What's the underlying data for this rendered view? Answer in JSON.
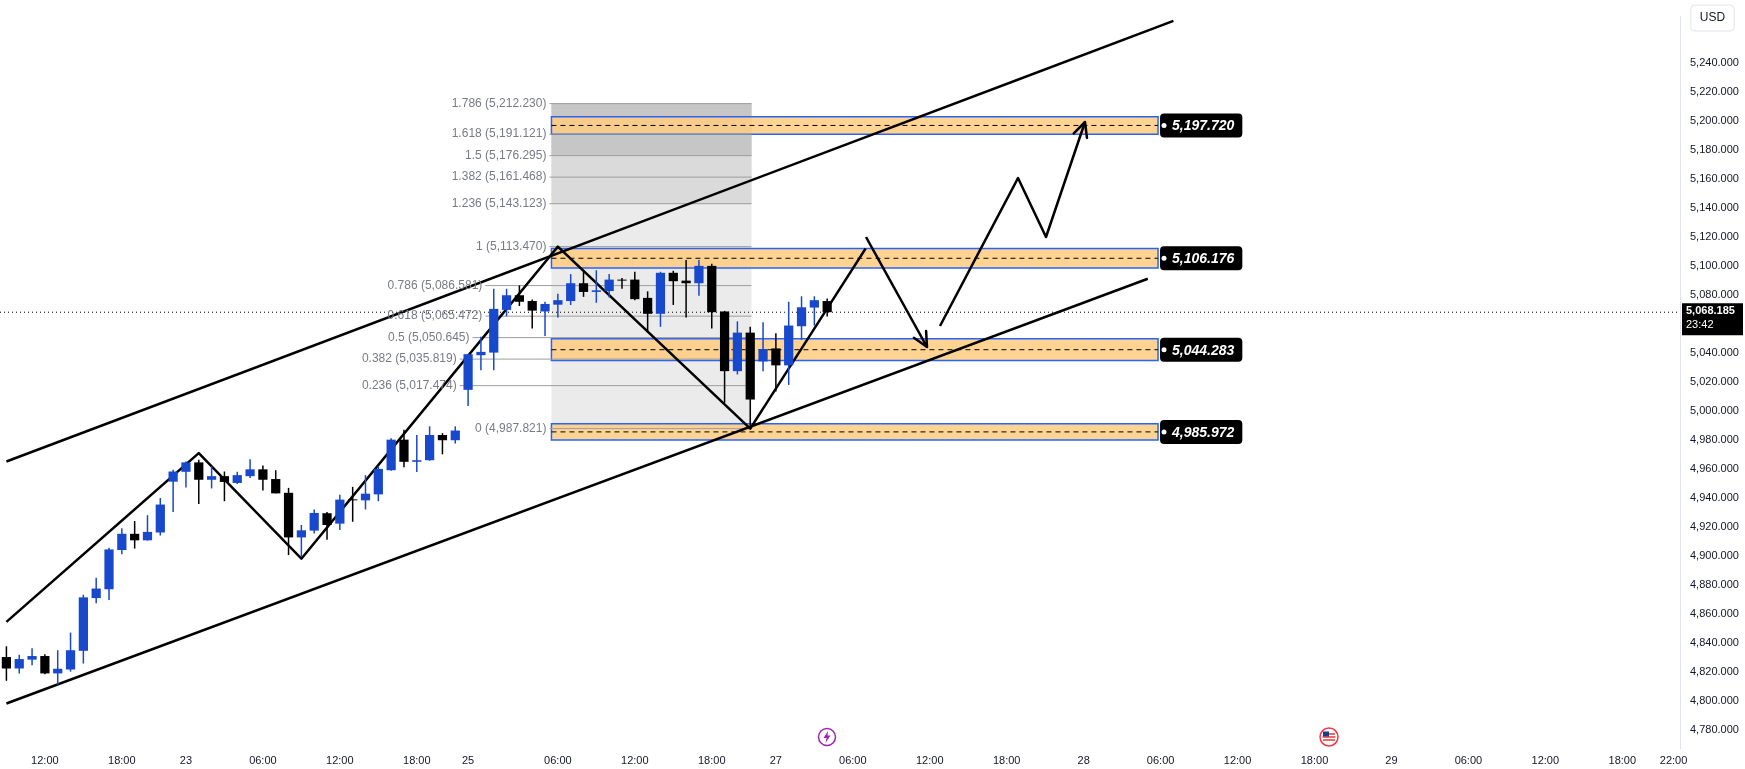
{
  "chart_data": {
    "type": "candlestick",
    "ylabel": "USD",
    "categories": [
      null,
      null,
      null,
      "12:00",
      null,
      null,
      null,
      null,
      null,
      "18:00",
      null,
      null,
      null,
      null,
      "23",
      null,
      null,
      null,
      null,
      null,
      "06:00",
      null,
      null,
      null,
      null,
      null,
      "12:00",
      null,
      null,
      null,
      null,
      null,
      "18:00",
      null,
      null,
      null,
      "25",
      null,
      null,
      null,
      null,
      null,
      null,
      "06:00",
      null,
      null,
      null,
      null,
      null,
      "12:00",
      null,
      null,
      null,
      null,
      null,
      "18:00",
      null,
      null,
      null,
      null,
      "27",
      null,
      null,
      null,
      null,
      null,
      "06:00",
      null,
      null,
      null,
      null,
      null,
      "12:00",
      null,
      null,
      null,
      null,
      null,
      "18:00",
      null,
      null,
      null,
      null,
      null,
      "28",
      null,
      null,
      null,
      null,
      null,
      "06:00",
      null,
      null,
      null,
      null,
      null,
      "12:00",
      null,
      null,
      null,
      null,
      null,
      "18:00",
      null,
      null,
      null,
      null,
      null,
      "29",
      null,
      null,
      null,
      null,
      null,
      "06:00",
      null,
      null,
      null,
      null,
      null,
      "12:00",
      null,
      null,
      null,
      null,
      null,
      "18:00",
      null,
      null,
      null,
      "22:00"
    ],
    "ohlc": [
      [
        4830.1,
        4837.5,
        4813.7,
        4822.2
      ],
      [
        4822.2,
        4831.7,
        4818.8,
        4828.7
      ],
      [
        4828.3,
        4836.2,
        4824.5,
        4830.8
      ],
      [
        4830.8,
        4832.1,
        4818.2,
        4818.8
      ],
      [
        4818.8,
        4834.8,
        4811.0,
        4822.0
      ],
      [
        4821.5,
        4847.0,
        4820.0,
        4834.8
      ],
      [
        4834.4,
        4873.1,
        4825.6,
        4871.3
      ],
      [
        4870.8,
        4884.8,
        4867.2,
        4877.4
      ],
      [
        4876.9,
        4905.5,
        4869.5,
        4904.4
      ],
      [
        4904.0,
        4919.0,
        4901.0,
        4915.2
      ],
      [
        4915.2,
        4924.0,
        4905.0,
        4910.7
      ],
      [
        4910.7,
        4928.0,
        4910.5,
        4916.5
      ],
      [
        4916.1,
        4939.9,
        4914.0,
        4935.4
      ],
      [
        4951.2,
        4959.5,
        4930.3,
        4958.2
      ],
      [
        4958.0,
        4965.1,
        4947.1,
        4964.5
      ],
      [
        4964.5,
        4966.3,
        4935.7,
        4952.5
      ],
      [
        4952.5,
        4961.8,
        4946.5,
        4955.0
      ],
      [
        4955.0,
        4958.2,
        4937.7,
        4951.0
      ],
      [
        4950.3,
        4958.0,
        4949.6,
        4955.7
      ],
      [
        4955.0,
        4966.7,
        4953.7,
        4959.7
      ],
      [
        4959.7,
        4962.4,
        4945.1,
        4952.5
      ],
      [
        4953.0,
        4959.1,
        4943.1,
        4943.1
      ],
      [
        4943.5,
        4946.9,
        4900.5,
        4912.7
      ],
      [
        4912.7,
        4921.3,
        4899.2,
        4917.6
      ],
      [
        4917.4,
        4932.0,
        4915.4,
        4929.6
      ],
      [
        4929.4,
        4930.3,
        4911.1,
        4921.3
      ],
      [
        4922.2,
        4942.2,
        4917.9,
        4938.8
      ],
      [
        4938.6,
        4947.6,
        4923.5,
        4938.3
      ],
      [
        4938.3,
        4955.7,
        4932.0,
        4942.9
      ],
      [
        4942.4,
        4962.2,
        4937.7,
        4960.0
      ],
      [
        4959.1,
        4981.1,
        4958.8,
        4980.2
      ],
      [
        4980.2,
        4987.0,
        4961.1,
        4964.9
      ],
      [
        4964.9,
        4983.4,
        4957.9,
        4966.0
      ],
      [
        4966.0,
        4989.4,
        4965.6,
        4983.4
      ],
      [
        4983.4,
        4984.7,
        4970.1,
        4979.8
      ],
      [
        4979.8,
        4989.4,
        4977.5,
        4986.5
      ],
      [
        5014.6,
        5039.4,
        5003.4,
        5039.2
      ],
      [
        5038.5,
        5051.3,
        5028.1,
        5040.8
      ],
      [
        5040.3,
        5084.4,
        5028.1,
        5070.5
      ],
      [
        5069.8,
        5084.4,
        5065.3,
        5079.9
      ],
      [
        5079.9,
        5086.7,
        5072.5,
        5075.4
      ],
      [
        5075.9,
        5077.0,
        5057.0,
        5069.3
      ],
      [
        5068.7,
        5075.4,
        5051.8,
        5073.9
      ],
      [
        5073.4,
        5081.0,
        5064.6,
        5076.5
      ],
      [
        5075.9,
        5094.5,
        5073.2,
        5088.2
      ],
      [
        5088.2,
        5097.2,
        5078.8,
        5082.2
      ],
      [
        5082.2,
        5097.2,
        5074.7,
        5083.3
      ],
      [
        5082.8,
        5094.5,
        5078.3,
        5090.7
      ],
      [
        5090.7,
        5091.8,
        5084.4,
        5090.0
      ],
      [
        5090.7,
        5096.1,
        5076.5,
        5077.2
      ],
      [
        5078.1,
        5082.6,
        5054.0,
        5067.1
      ],
      [
        5067.1,
        5096.1,
        5058.1,
        5095.4
      ],
      [
        5095.4,
        5096.8,
        5073.2,
        5089.6
      ],
      [
        5090.0,
        5104.2,
        5064.6,
        5088.2
      ],
      [
        5088.2,
        5104.2,
        5079.5,
        5100.2
      ],
      [
        5100.2,
        5101.7,
        5056.9,
        5068.2
      ],
      [
        5068.7,
        5069.1,
        5005.6,
        5027.5
      ],
      [
        5027.5,
        5061.9,
        5025.2,
        5054.1
      ],
      [
        5054.1,
        5058.1,
        4989.9,
        5007.9
      ],
      [
        5034.2,
        5061.2,
        5027.5,
        5042.8
      ],
      [
        5043.2,
        5053.6,
        5013.5,
        5031.5
      ],
      [
        5031.5,
        5075.4,
        5018.0,
        5059.0
      ],
      [
        5058.5,
        5079.2,
        5049.1,
        5071.6
      ],
      [
        5071.4,
        5079.2,
        5059.0,
        5076.5
      ],
      [
        5075.9,
        5077.7,
        5065.3,
        5068.2
      ],
      null,
      null,
      null,
      null,
      null,
      null,
      null,
      null,
      null,
      null,
      null,
      null,
      null,
      null,
      null,
      null,
      null,
      null,
      null,
      null,
      null,
      null,
      null,
      null,
      null,
      null,
      null,
      null,
      null,
      null,
      null,
      null,
      null,
      null,
      null,
      null,
      null,
      null,
      null,
      null,
      null,
      null,
      null,
      null,
      null,
      null,
      null,
      null,
      null,
      null,
      null,
      null,
      null,
      null,
      null,
      null,
      null,
      null,
      null,
      null,
      null,
      null,
      null,
      null,
      null,
      null
    ],
    "colors": [
      "#000000",
      "#1848cc",
      "#1848cc",
      "#000000",
      "#1848cc",
      "#1848cc",
      "#1848cc",
      "#1848cc",
      "#1848cc",
      "#1848cc",
      "#000000",
      "#1848cc",
      "#1848cc",
      "#1848cc",
      "#1848cc",
      "#000000",
      "#1848cc",
      "#000000",
      "#1848cc",
      "#1848cc",
      "#000000",
      "#000000",
      "#000000",
      "#1848cc",
      "#1848cc",
      "#000000",
      "#1848cc",
      "#000000",
      "#1848cc",
      "#1848cc",
      "#1848cc",
      "#000000",
      "#1848cc",
      "#1848cc",
      "#000000",
      "#1848cc",
      "#1848cc",
      "#1848cc",
      "#1848cc",
      "#1848cc",
      "#000000",
      "#000000",
      "#1848cc",
      "#1848cc",
      "#1848cc",
      "#000000",
      "#1848cc",
      "#1848cc",
      "#000000",
      "#000000",
      "#000000",
      "#1848cc",
      "#000000",
      "#000000",
      "#1848cc",
      "#000000",
      "#000000",
      "#1848cc",
      "#000000",
      "#1848cc",
      "#000000",
      "#1848cc",
      "#1848cc",
      "#1848cc",
      "#000000",
      null,
      null,
      null,
      null,
      null,
      null,
      null,
      null,
      null,
      null,
      null,
      null,
      null,
      null,
      null,
      null,
      null,
      null,
      null,
      null,
      null,
      null,
      null,
      null,
      null,
      null,
      null,
      null,
      null,
      null,
      null,
      null,
      null,
      null,
      null,
      null,
      null,
      null,
      null,
      null,
      null,
      null,
      null,
      null,
      null,
      null,
      null,
      null,
      null,
      null,
      null,
      null,
      null,
      null,
      null,
      null,
      null,
      null,
      null,
      null,
      null,
      null,
      null,
      null,
      null,
      null
    ],
    "series": [
      {
        "type": "line",
        "color": "#000000",
        "values": [
          4965.1,
          null,
          null,
          null,
          null,
          null,
          null,
          null,
          null,
          null,
          null,
          null,
          null,
          null,
          null,
          null,
          null,
          null,
          null,
          null,
          null,
          null,
          null,
          null,
          null,
          null,
          null,
          null,
          null,
          null,
          null,
          null,
          null,
          null,
          null,
          null,
          null,
          null,
          null,
          null,
          null,
          null,
          null,
          null,
          null,
          null,
          null,
          null,
          null,
          null,
          null,
          null,
          null,
          null,
          null,
          null,
          null,
          null,
          null,
          null,
          null,
          null,
          null,
          null,
          null,
          null,
          null,
          null,
          null,
          null,
          null,
          null,
          null,
          null,
          null,
          null,
          null,
          null,
          null,
          null,
          null,
          null,
          null,
          null,
          null,
          null,
          null,
          null,
          null,
          null,
          null,
          5269.3,
          null,
          null,
          null,
          null,
          null,
          null,
          null,
          null,
          null,
          null,
          null,
          null,
          null,
          null,
          null,
          null,
          null,
          null,
          null,
          null,
          null,
          null,
          null,
          null,
          null,
          null,
          null,
          null,
          null,
          null,
          null,
          null,
          null,
          null,
          null,
          null,
          null,
          null,
          null
        ]
      },
      {
        "type": "line",
        "color": "#000000",
        "values": [
          4798.0,
          null,
          null,
          null,
          null,
          null,
          null,
          null,
          null,
          null,
          null,
          null,
          null,
          null,
          null,
          null,
          null,
          null,
          null,
          null,
          null,
          null,
          null,
          null,
          null,
          null,
          null,
          null,
          null,
          null,
          null,
          null,
          null,
          null,
          null,
          null,
          null,
          null,
          null,
          null,
          null,
          null,
          null,
          null,
          null,
          null,
          null,
          null,
          null,
          null,
          null,
          null,
          null,
          null,
          null,
          null,
          null,
          null,
          null,
          null,
          null,
          null,
          null,
          null,
          null,
          null,
          null,
          null,
          null,
          null,
          null,
          null,
          null,
          null,
          null,
          null,
          null,
          null,
          null,
          null,
          null,
          null,
          null,
          null,
          null,
          null,
          null,
          null,
          null,
          5091.3,
          null,
          null,
          null,
          null,
          null,
          null,
          null,
          null,
          null,
          null,
          null,
          null,
          null,
          null,
          null,
          null,
          null,
          null,
          null,
          null,
          null,
          null,
          null,
          null,
          null,
          null,
          null,
          null,
          null,
          null,
          null,
          null,
          null,
          null,
          null,
          null,
          null,
          null,
          null,
          null,
          null
        ]
      },
      {
        "type": "line",
        "color": "#000000",
        "values": [
          4854.4,
          null,
          null,
          null,
          null,
          null,
          null,
          null,
          null,
          null,
          null,
          null,
          null,
          null,
          null,
          4970.9,
          null,
          null,
          null,
          null,
          null,
          null,
          null,
          4898.0,
          null,
          null,
          null,
          null,
          null,
          null,
          null,
          null,
          null,
          null,
          null,
          null,
          null,
          null,
          null,
          null,
          null,
          null,
          null,
          5113.5,
          null,
          null,
          null,
          null,
          null,
          null,
          null,
          null,
          null,
          null,
          null,
          null,
          null,
          null,
          4987.8,
          null,
          null,
          null,
          null,
          null,
          null,
          null,
          null,
          5112.2,
          null,
          null,
          null,
          null,
          null,
          null,
          null,
          null,
          null,
          null,
          null,
          null,
          null,
          null,
          null,
          null,
          null,
          null,
          null,
          null,
          null,
          null,
          null,
          null,
          null,
          null,
          null,
          null,
          null,
          null,
          null,
          null,
          null,
          null,
          null,
          null,
          null,
          null,
          null,
          null,
          null,
          null,
          null,
          null,
          null,
          null,
          null,
          null,
          null,
          null,
          null,
          null,
          null,
          null,
          null,
          null,
          null,
          null,
          null,
          null,
          null,
          null,
          null
        ]
      }
    ],
    "ylim": [
      4767.3,
      5272.3
    ],
    "yticks": [
      {
        "value": 4780,
        "label": "4,780.000"
      },
      {
        "value": 4800,
        "label": "4,800.000"
      },
      {
        "value": 4820,
        "label": "4,820.000"
      },
      {
        "value": 4840,
        "label": "4,840.000"
      },
      {
        "value": 4860,
        "label": "4,860.000"
      },
      {
        "value": 4880,
        "label": "4,880.000"
      },
      {
        "value": 4900,
        "label": "4,900.000"
      },
      {
        "value": 4920,
        "label": "4,920.000"
      },
      {
        "value": 4940,
        "label": "4,940.000"
      },
      {
        "value": 4960,
        "label": "4,960.000"
      },
      {
        "value": 4980,
        "label": "4,980.000"
      },
      {
        "value": 5000,
        "label": "5,000.000"
      },
      {
        "value": 5020,
        "label": "5,020.000"
      },
      {
        "value": 5040,
        "label": "5,040.000"
      },
      {
        "value": 5080,
        "label": "5,080.000"
      },
      {
        "value": 5100,
        "label": "5,100.000"
      },
      {
        "value": 5120,
        "label": "5,120.000"
      },
      {
        "value": 5140,
        "label": "5,140.000"
      },
      {
        "value": 5160,
        "label": "5,160.000"
      },
      {
        "value": 5180,
        "label": "5,180.000"
      },
      {
        "value": 5200,
        "label": "5,200.000"
      },
      {
        "value": 5220,
        "label": "5,220.000"
      },
      {
        "value": 5240,
        "label": "5,240.000"
      }
    ],
    "bands": [
      {
        "axis": "y",
        "from": 4987.821,
        "to": 5212.23,
        "color": "#ebebeb"
      },
      {
        "axis": "y",
        "from": 5143.123,
        "to": 5212.23,
        "color": "#dadada"
      },
      {
        "axis": "y",
        "from": 5176.295,
        "to": 5212.23,
        "color": "#c6c6c6"
      },
      {
        "axis": "y",
        "from": 5191.1,
        "to": 5203.2,
        "label": "5,197.720",
        "color": "#ffcc80"
      },
      {
        "axis": "y",
        "from": 5098.7,
        "to": 5112.2,
        "label": "5,106.176",
        "color": "#ffcc80"
      },
      {
        "axis": "y",
        "from": 5034.8,
        "to": 5049.8,
        "label": "5,044.283",
        "color": "#ffcc80"
      },
      {
        "axis": "y",
        "from": 4979.9,
        "to": 4991.2,
        "label": "4,985.972",
        "color": "#ffcc80"
      }
    ],
    "ref_lines": [
      {
        "axis": "y",
        "value": 5212.23,
        "label": "1.786 (5,212.230)",
        "color": "#9e9e9e"
      },
      {
        "axis": "y",
        "value": 5191.121,
        "label": "1.618 (5,191.121)",
        "color": "#9e9e9e"
      },
      {
        "axis": "y",
        "value": 5176.295,
        "label": "1.5 (5,176.295)",
        "color": "#9e9e9e"
      },
      {
        "axis": "y",
        "value": 5161.468,
        "label": "1.382 (5,161.468)",
        "color": "#9e9e9e"
      },
      {
        "axis": "y",
        "value": 5143.123,
        "label": "1.236 (5,143.123)",
        "color": "#9e9e9e"
      },
      {
        "axis": "y",
        "value": 5113.47,
        "label": "1 (5,113.470)",
        "color": "#9e9e9e"
      },
      {
        "axis": "y",
        "value": 5086.581,
        "label": "0.786 (5,086.581)",
        "color": "#9e9e9e"
      },
      {
        "axis": "y",
        "value": 5065.472,
        "label": "0.618 (5,065.472)",
        "color": "#9e9e9e"
      },
      {
        "axis": "y",
        "value": 5050.645,
        "label": "0.5 (5,050.645)",
        "color": "#9e9e9e"
      },
      {
        "axis": "y",
        "value": 5035.819,
        "label": "0.382 (5,035.819)",
        "color": "#9e9e9e"
      },
      {
        "axis": "y",
        "value": 5017.474,
        "label": "0.236 (5,017.474)",
        "color": "#9e9e9e"
      },
      {
        "axis": "y",
        "value": 4987.821,
        "label": "0 (4,987.821)",
        "color": "#9e9e9e"
      },
      {
        "axis": "y",
        "value": 5068.185,
        "label": "5,068.185\n23:42",
        "color": "#000000",
        "line_style": "dotted"
      }
    ]
  }
}
